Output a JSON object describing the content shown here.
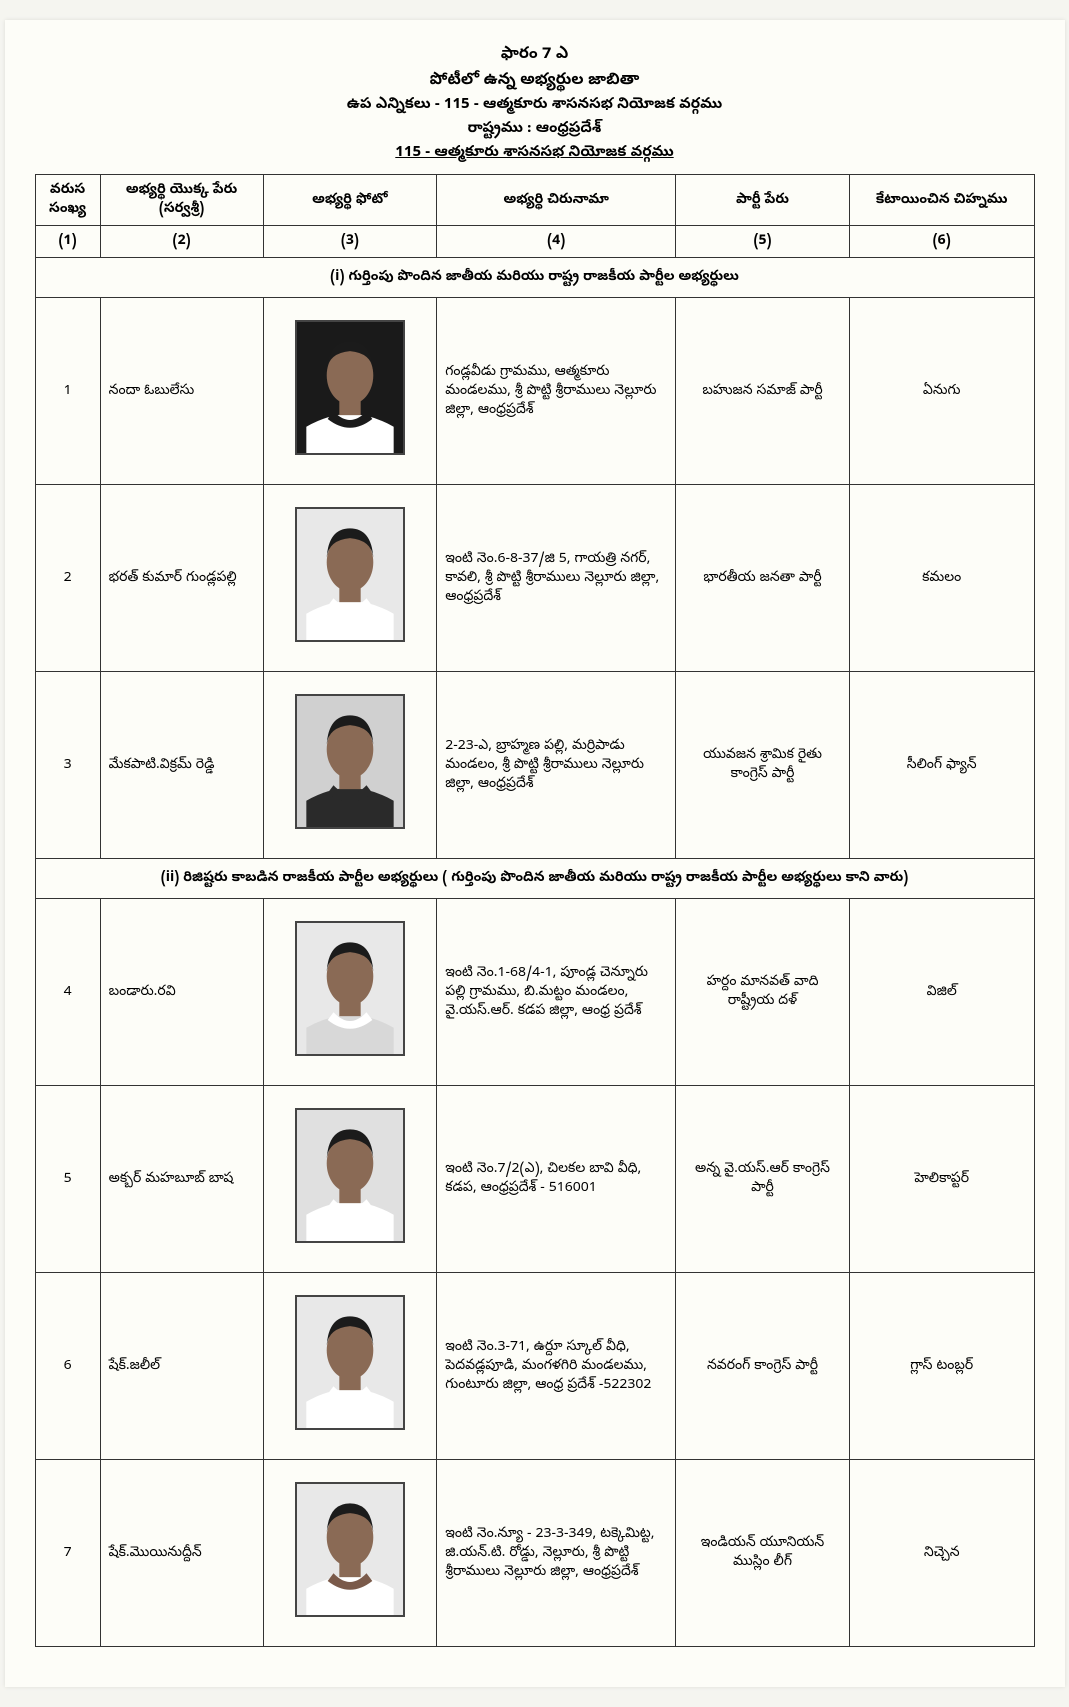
{
  "header": {
    "form": "ఫారం 7 ఎ",
    "title": "పోటీలో ఉన్న అభ్యర్థుల జాబితా",
    "sub": "ఉప ఎన్నికలు - 115 - ఆత్మకూరు శాసనసభ నియోజక వర్గము",
    "state": "రాష్ట్రము : ఆంధ్రప్రదేశ్",
    "constituency": "115 - ఆత్మకూరు శాసనసభ నియోజక వర్గము"
  },
  "columns": {
    "sno": {
      "label": "వరుస సంఖ్య",
      "num": "(1)"
    },
    "name": {
      "label": "అభ్యర్థి యొక్క పేరు (సర్వశ్రీ)",
      "num": "(2)"
    },
    "photo": {
      "label": "అభ్యర్థి ఫోటో",
      "num": "(3)"
    },
    "address": {
      "label": "అభ్యర్థి చిరునామా",
      "num": "(4)"
    },
    "party": {
      "label": "పార్టీ పేరు",
      "num": "(5)"
    },
    "symbol": {
      "label": "కేటాయించిన చిహ్నము",
      "num": "(6)"
    }
  },
  "sections": [
    {
      "title": "(i) గుర్తింపు పొందిన జాతీయ మరియు రాష్ట్ర రాజకీయ పార్టీల అభ్యర్థులు",
      "rows": [
        {
          "sno": "1",
          "name": "నందా ఓబులేసు",
          "address": "గండ్లవీడు గ్రామము, ఆత్మకూరు మండలము, శ్రీ పొట్టి శ్రీరాములు నెల్లూరు జిల్లా, ఆంధ్రప్రదేశ్",
          "party": "బహుజన సమాజ్ పార్టీ",
          "symbol": "ఏనుగు",
          "photo": {
            "bg": "#1a1a1a",
            "collar": "#1a1a1a",
            "shirt": "#ffffff"
          }
        },
        {
          "sno": "2",
          "name": "భరత్ కుమార్ గుండ్లపల్లి",
          "address": "ఇంటి నెం.6-8-37/జి 5, గాయత్రి నగర్, కావలి, శ్రీ పొట్టి శ్రీరాములు నెల్లూరు జిల్లా, ఆంధ్రప్రదేశ్",
          "party": "భారతీయ జనతా పార్టీ",
          "symbol": "కమలం",
          "photo": {
            "bg": "#e8e8e8",
            "collar": "#ffffff",
            "shirt": "#ffffff"
          }
        },
        {
          "sno": "3",
          "name": "మేకపాటి.విక్రమ్ రెడ్డి",
          "address": "2-23-ఎ, బ్రాహ్మణ పల్లి, మర్రిపాడు మండలం, శ్రీ పొట్టి శ్రీరాములు నెల్లూరు జిల్లా, ఆంధ్రప్రదేశ్",
          "party": "యువజన శ్రామిక రైతు కాంగ్రెస్ పార్టీ",
          "symbol": "సీలింగ్ ఫ్యాన్",
          "photo": {
            "bg": "#d0d0d0",
            "collar": "#2a2a2a",
            "shirt": "#2a2a2a"
          }
        }
      ]
    },
    {
      "title": "(ii) రిజిష్టరు కాబడిన రాజకీయ పార్టీల అభ్యర్థులు ( గుర్తింపు పొందిన జాతీయ మరియు రాష్ట్ర రాజకీయ పార్టీల అభ్యర్థులు కాని వారు)",
      "rows": [
        {
          "sno": "4",
          "name": "బండారు.రవి",
          "address": "ఇంటి నెం.1-68/4-1, పూండ్ల చెన్నూరు పల్లి గ్రామము, బి.మట్టం మండలం, వై.యస్.ఆర్. కడప జిల్లా, ఆంధ్ర ప్రదేశ్",
          "party": "హర్దం మానవత్ వాది రాష్ట్రీయ దళ్",
          "symbol": "విజిల్",
          "photo": {
            "bg": "#e8e8e8",
            "collar": "#ffffff",
            "shirt": "#d8d8d8"
          }
        },
        {
          "sno": "5",
          "name": "అక్బర్ మహబూబ్ బాష",
          "address": "ఇంటి నెం.7/2(ఎ), చిలకల బావి వీధి, కడప, ఆంధ్రప్రదేశ్ - 516001",
          "party": "అన్న వై.యస్.ఆర్ కాంగ్రెస్ పార్టీ",
          "symbol": "హెలికాప్టర్",
          "photo": {
            "bg": "#e0e0e0",
            "collar": "#ffffff",
            "shirt": "#ffffff"
          }
        },
        {
          "sno": "6",
          "name": "షేక్.జలీల్",
          "address": "ఇంటి నెం.3-71, ఉర్దూ స్కూల్ వీధి, పెదవడ్లపూడి, మంగళగిరి మండలము, గుంటూరు జిల్లా, ఆంధ్ర ప్రదేశ్ -522302",
          "party": "నవరంగ్ కాంగ్రెస్ పార్టీ",
          "symbol": "గ్లాస్ టంబ్లర్",
          "photo": {
            "bg": "#e8e8e8",
            "collar": "#ffffff",
            "shirt": "#ffffff"
          }
        },
        {
          "sno": "7",
          "name": "షేక్.మొయినుద్దీన్",
          "address": "ఇంటి నెం.న్యూ - 23-3-349, టక్కెమిట్ట, జి.యన్.టి. రోడ్డు, నెల్లూరు,  శ్రీ పొట్టి శ్రీరాములు నెల్లూరు జిల్లా, ఆంధ్రప్రదేశ్",
          "party": "ఇండియన్ యూనియన్ ముస్లిం లీగ్",
          "symbol": "నిచ్చెన",
          "photo": {
            "bg": "#e8e8e8",
            "collar": "#7a5a4a",
            "shirt": "#ffffff"
          }
        }
      ]
    }
  ],
  "colors": {
    "page_bg": "#fdfdf8",
    "border": "#333333",
    "skin": "#8a6a55",
    "hair": "#1b1b1b"
  }
}
